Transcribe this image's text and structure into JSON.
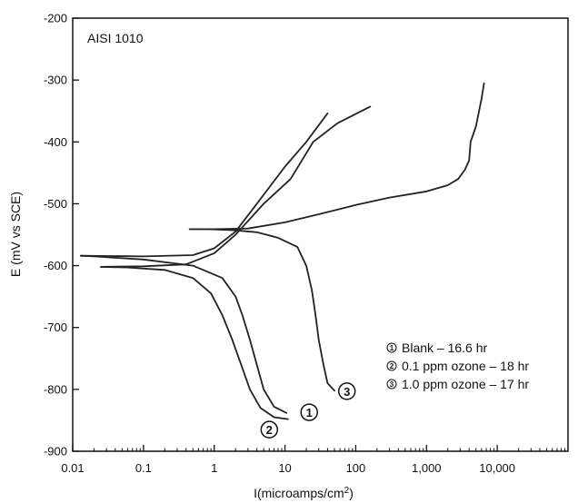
{
  "chart_data": {
    "type": "line",
    "annotation": "AISI 1010",
    "xlabel_main": "I(microamps/cm",
    "xlabel_sup": "2",
    "xlabel_tail": ")",
    "ylabel": "E (mV vs SCE)",
    "x_scale": "log",
    "xlim": [
      0.01,
      100000
    ],
    "ylim": [
      -900,
      -200
    ],
    "x_ticks": [
      {
        "value": 0.01,
        "label": "0.01"
      },
      {
        "value": 0.1,
        "label": "0.1"
      },
      {
        "value": 1,
        "label": "1"
      },
      {
        "value": 10,
        "label": "10"
      },
      {
        "value": 100,
        "label": "100"
      },
      {
        "value": 1000,
        "label": "1,000"
      },
      {
        "value": 10000,
        "label": "10,000"
      }
    ],
    "y_ticks": [
      {
        "value": -200,
        "label": "-200"
      },
      {
        "value": -300,
        "label": "-300"
      },
      {
        "value": -400,
        "label": "-400"
      },
      {
        "value": -500,
        "label": "-500"
      },
      {
        "value": -600,
        "label": "-600"
      },
      {
        "value": -700,
        "label": "-700"
      },
      {
        "value": -800,
        "label": "-800"
      },
      {
        "value": -900,
        "label": "-900"
      }
    ],
    "grid": false,
    "legend_position": "right",
    "series": [
      {
        "marker": "1",
        "name": "Blank – 16.6 hr",
        "curve_marker_point": [
          22,
          -837
        ],
        "cathodic": [
          [
            10.5,
            -838
          ],
          [
            7.0,
            -828
          ],
          [
            5.0,
            -800
          ],
          [
            4.0,
            -760
          ],
          [
            3.2,
            -720
          ],
          [
            2.5,
            -680
          ],
          [
            2.0,
            -650
          ],
          [
            1.3,
            -620
          ],
          [
            0.5,
            -600
          ],
          [
            0.1,
            -590
          ],
          [
            0.02,
            -585
          ],
          [
            0.013,
            -584
          ]
        ],
        "anodic": [
          [
            0.013,
            -584
          ],
          [
            0.1,
            -585
          ],
          [
            0.5,
            -583
          ],
          [
            1.0,
            -572
          ],
          [
            2.0,
            -545
          ],
          [
            4.0,
            -500
          ],
          [
            10,
            -440
          ],
          [
            20,
            -400
          ],
          [
            40,
            -354
          ]
        ]
      },
      {
        "marker": "2",
        "name": "0.1 ppm ozone – 18 hr",
        "curve_marker_point": [
          6,
          -865
        ],
        "cathodic": [
          [
            11,
            -848
          ],
          [
            7,
            -845
          ],
          [
            4.5,
            -830
          ],
          [
            3.2,
            -800
          ],
          [
            2.4,
            -760
          ],
          [
            1.8,
            -720
          ],
          [
            1.3,
            -680
          ],
          [
            0.9,
            -645
          ],
          [
            0.5,
            -620
          ],
          [
            0.2,
            -607
          ],
          [
            0.06,
            -603
          ],
          [
            0.025,
            -602
          ]
        ],
        "anodic": [
          [
            0.025,
            -602
          ],
          [
            0.1,
            -601
          ],
          [
            0.4,
            -598
          ],
          [
            1.0,
            -580
          ],
          [
            2.0,
            -550
          ],
          [
            5.0,
            -500
          ],
          [
            12,
            -460
          ],
          [
            25,
            -400
          ],
          [
            55,
            -370
          ],
          [
            160,
            -343
          ]
        ]
      },
      {
        "marker": "3",
        "name": "1.0 ppm ozone – 17 hr",
        "curve_marker_point": [
          75,
          -803
        ],
        "cathodic": [
          [
            50,
            -802
          ],
          [
            40,
            -790
          ],
          [
            35,
            -760
          ],
          [
            30,
            -720
          ],
          [
            27,
            -680
          ],
          [
            24,
            -640
          ],
          [
            20,
            -600
          ],
          [
            15,
            -570
          ],
          [
            8,
            -555
          ],
          [
            4,
            -546
          ],
          [
            2,
            -543
          ],
          [
            0.8,
            -541
          ],
          [
            0.45,
            -541
          ]
        ],
        "anodic": [
          [
            0.45,
            -541
          ],
          [
            1.0,
            -541
          ],
          [
            3.0,
            -540
          ],
          [
            10,
            -530
          ],
          [
            30,
            -517
          ],
          [
            100,
            -502
          ],
          [
            300,
            -490
          ],
          [
            1000,
            -480
          ],
          [
            2000,
            -470
          ],
          [
            2800,
            -460
          ],
          [
            3500,
            -445
          ],
          [
            4000,
            -430
          ],
          [
            4200,
            -400
          ],
          [
            5000,
            -375
          ],
          [
            6000,
            -330
          ],
          [
            6500,
            -305
          ]
        ]
      }
    ]
  }
}
